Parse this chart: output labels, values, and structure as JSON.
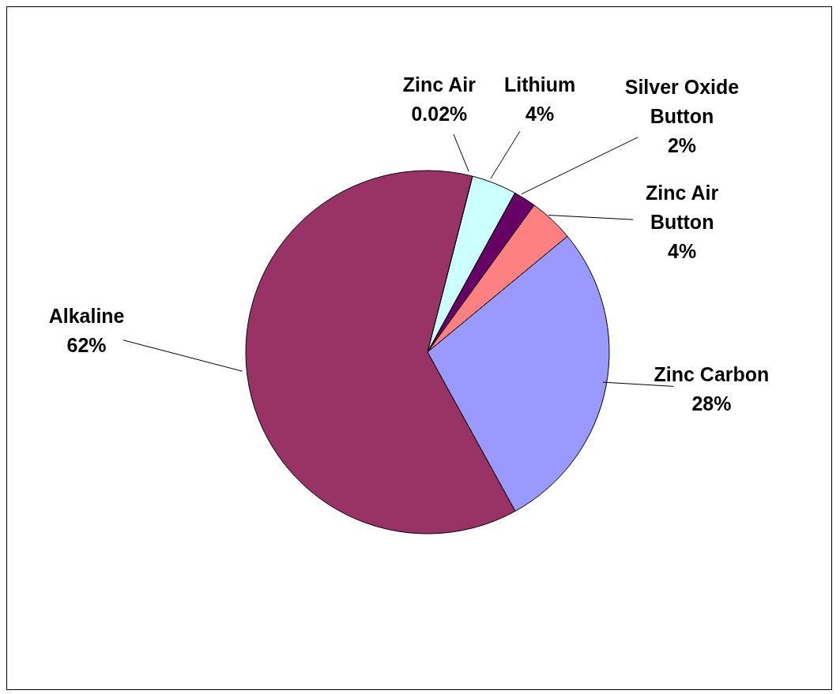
{
  "chart_data": {
    "type": "pie",
    "categories": [
      "Zinc Air",
      "Lithium",
      "Silver Oxide Button",
      "Zinc Air Button",
      "Zinc Carbon",
      "Alkaline"
    ],
    "values": [
      0.02,
      4,
      2,
      4,
      28,
      62
    ],
    "colors": [
      "#ccffff",
      "#ccffff",
      "#660066",
      "#ff8080",
      "#9999ff",
      "#993366"
    ],
    "value_labels": [
      "0.02%",
      "4%",
      "2%",
      "4%",
      "28%",
      "62%"
    ]
  }
}
